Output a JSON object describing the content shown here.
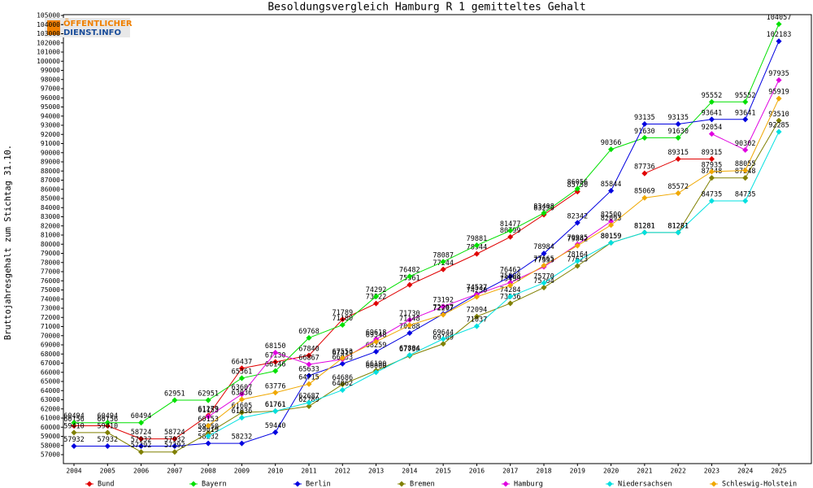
{
  "logo_text": [
    "ÖFFENTLICHER",
    "DIENST.INFO"
  ],
  "chart_data": {
    "type": "line",
    "title": "Besoldungsvergleich Hamburg R 1 gemitteltes Gehalt",
    "y_label": "Bruttojahresgehalt zum Stichtag 31.10.",
    "categories": [
      "2004",
      "2005",
      "2006",
      "2007",
      "2008",
      "2009",
      "2010",
      "2011",
      "2012",
      "2013",
      "2014",
      "2015",
      "2016",
      "2017",
      "2018",
      "2019",
      "2020",
      "2021",
      "2022",
      "2023",
      "2024",
      "2025"
    ],
    "ylim": [
      57000,
      105000
    ],
    "yticks": [
      57000,
      58000,
      59000,
      60000,
      61000,
      62000,
      63000,
      64000,
      65000,
      66000,
      67000,
      68000,
      69000,
      70000,
      71000,
      72000,
      73000,
      74000,
      75000,
      76000,
      77000,
      78000,
      79000,
      80000,
      81000,
      82000,
      83000,
      84000,
      85000,
      86000,
      87000,
      88000,
      89000,
      90000,
      91000,
      92000,
      93000,
      94000,
      95000,
      96000,
      97000,
      98000,
      99000,
      100000,
      101000,
      102000,
      103000,
      104000,
      105000
    ],
    "grid": false,
    "legend": "bottom",
    "series": [
      {
        "name": "Bund",
        "color": "#e00000",
        "values": [
          60156,
          60156,
          58724,
          58724,
          61279,
          66437,
          67130,
          67840,
          71789,
          73522,
          75561,
          77244,
          78944,
          80799,
          83230,
          85750,
          null,
          87736,
          89315,
          89315,
          null,
          null
        ]
      },
      {
        "name": "Bayern",
        "color": "#00e000",
        "values": [
          60494,
          60494,
          60494,
          62951,
          62951,
          65361,
          66146,
          69768,
          71180,
          74292,
          76482,
          78087,
          79881,
          81477,
          83408,
          86056,
          90366,
          91630,
          91630,
          95552,
          95552,
          104057
        ]
      },
      {
        "name": "Berlin",
        "color": "#0000e0",
        "values": [
          57932,
          57932,
          57932,
          57932,
          58232,
          58232,
          59440,
          65633,
          66933,
          68259,
          70288,
          72387,
          74537,
          76462,
          78984,
          82342,
          85844,
          93135,
          93135,
          93641,
          93641,
          102183
        ]
      },
      {
        "name": "Bremen",
        "color": "#808000",
        "values": [
          59410,
          59410,
          57292,
          57292,
          59350,
          61605,
          61761,
          62289,
          64686,
          66190,
          67796,
          69109,
          72094,
          73536,
          75264,
          77623,
          80159,
          81281,
          81281,
          87248,
          87248,
          93510
        ]
      },
      {
        "name": "Hamburg",
        "color": "#e000e0",
        "values": [
          null,
          null,
          null,
          null,
          61153,
          63607,
          68150,
          66867,
          67419,
          69618,
          71730,
          73192,
          74537,
          75808,
          77533,
          79985,
          82500,
          null,
          null,
          92054,
          90302,
          97935
        ]
      },
      {
        "name": "Niedersachsen",
        "color": "#00e0e0",
        "values": [
          null,
          null,
          null,
          null,
          59019,
          61036,
          61761,
          62687,
          64062,
          66000,
          67884,
          69644,
          71037,
          74284,
          75770,
          78164,
          80159,
          81281,
          81281,
          84735,
          84735,
          92285
        ]
      },
      {
        "name": "Schleswig-Holstein",
        "color": "#f0a800",
        "values": [
          null,
          null,
          null,
          null,
          60153,
          63036,
          63776,
          64715,
          67553,
          69348,
          71148,
          72297,
          74250,
          75499,
          77665,
          79842,
          82093,
          85069,
          85572,
          87935,
          88055,
          95919
        ]
      }
    ]
  }
}
